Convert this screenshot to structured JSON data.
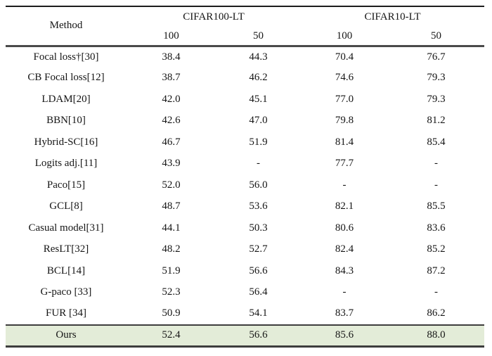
{
  "table": {
    "header": {
      "method_label": "Method",
      "groups": [
        {
          "label": "CIFAR100-LT",
          "sub": [
            "100",
            "50"
          ]
        },
        {
          "label": "CIFAR10-LT",
          "sub": [
            "100",
            "50"
          ]
        }
      ]
    },
    "rows": [
      {
        "method": "Focal loss†[30]",
        "values": [
          "38.4",
          "44.3",
          "70.4",
          "76.7"
        ],
        "highlight": false
      },
      {
        "method": "CB Focal loss[12]",
        "values": [
          "38.7",
          "46.2",
          "74.6",
          "79.3"
        ],
        "highlight": false
      },
      {
        "method": "LDAM[20]",
        "values": [
          "42.0",
          "45.1",
          "77.0",
          "79.3"
        ],
        "highlight": false
      },
      {
        "method": "BBN[10]",
        "values": [
          "42.6",
          "47.0",
          "79.8",
          "81.2"
        ],
        "highlight": false
      },
      {
        "method": "Hybrid-SC[16]",
        "values": [
          "46.7",
          "51.9",
          "81.4",
          "85.4"
        ],
        "highlight": false
      },
      {
        "method": "Logits adj.[11]",
        "values": [
          "43.9",
          "-",
          "77.7",
          "-"
        ],
        "highlight": false
      },
      {
        "method": "Paco[15]",
        "values": [
          "52.0",
          "56.0",
          "-",
          "-"
        ],
        "highlight": false
      },
      {
        "method": "GCL[8]",
        "values": [
          "48.7",
          "53.6",
          "82.1",
          "85.5"
        ],
        "highlight": false
      },
      {
        "method": "Casual model[31]",
        "values": [
          "44.1",
          "50.3",
          "80.6",
          "83.6"
        ],
        "highlight": false
      },
      {
        "method": "ResLT[32]",
        "values": [
          "48.2",
          "52.7",
          "82.4",
          "85.2"
        ],
        "highlight": false
      },
      {
        "method": "BCL[14]",
        "values": [
          "51.9",
          "56.6",
          "84.3",
          "87.2"
        ],
        "highlight": false
      },
      {
        "method": "G-paco [33]",
        "values": [
          "52.3",
          "56.4",
          "-",
          "-"
        ],
        "highlight": false
      },
      {
        "method": "FUR [34]",
        "values": [
          "50.9",
          "54.1",
          "83.7",
          "86.2"
        ],
        "highlight": false
      },
      {
        "method": "Ours",
        "values": [
          "52.4",
          "56.6",
          "85.6",
          "88.0"
        ],
        "highlight": true
      }
    ]
  },
  "colors": {
    "highlight_row_bg": "#e3ecd8",
    "rule_color": "#3d3d3d",
    "text_color": "#151515"
  }
}
